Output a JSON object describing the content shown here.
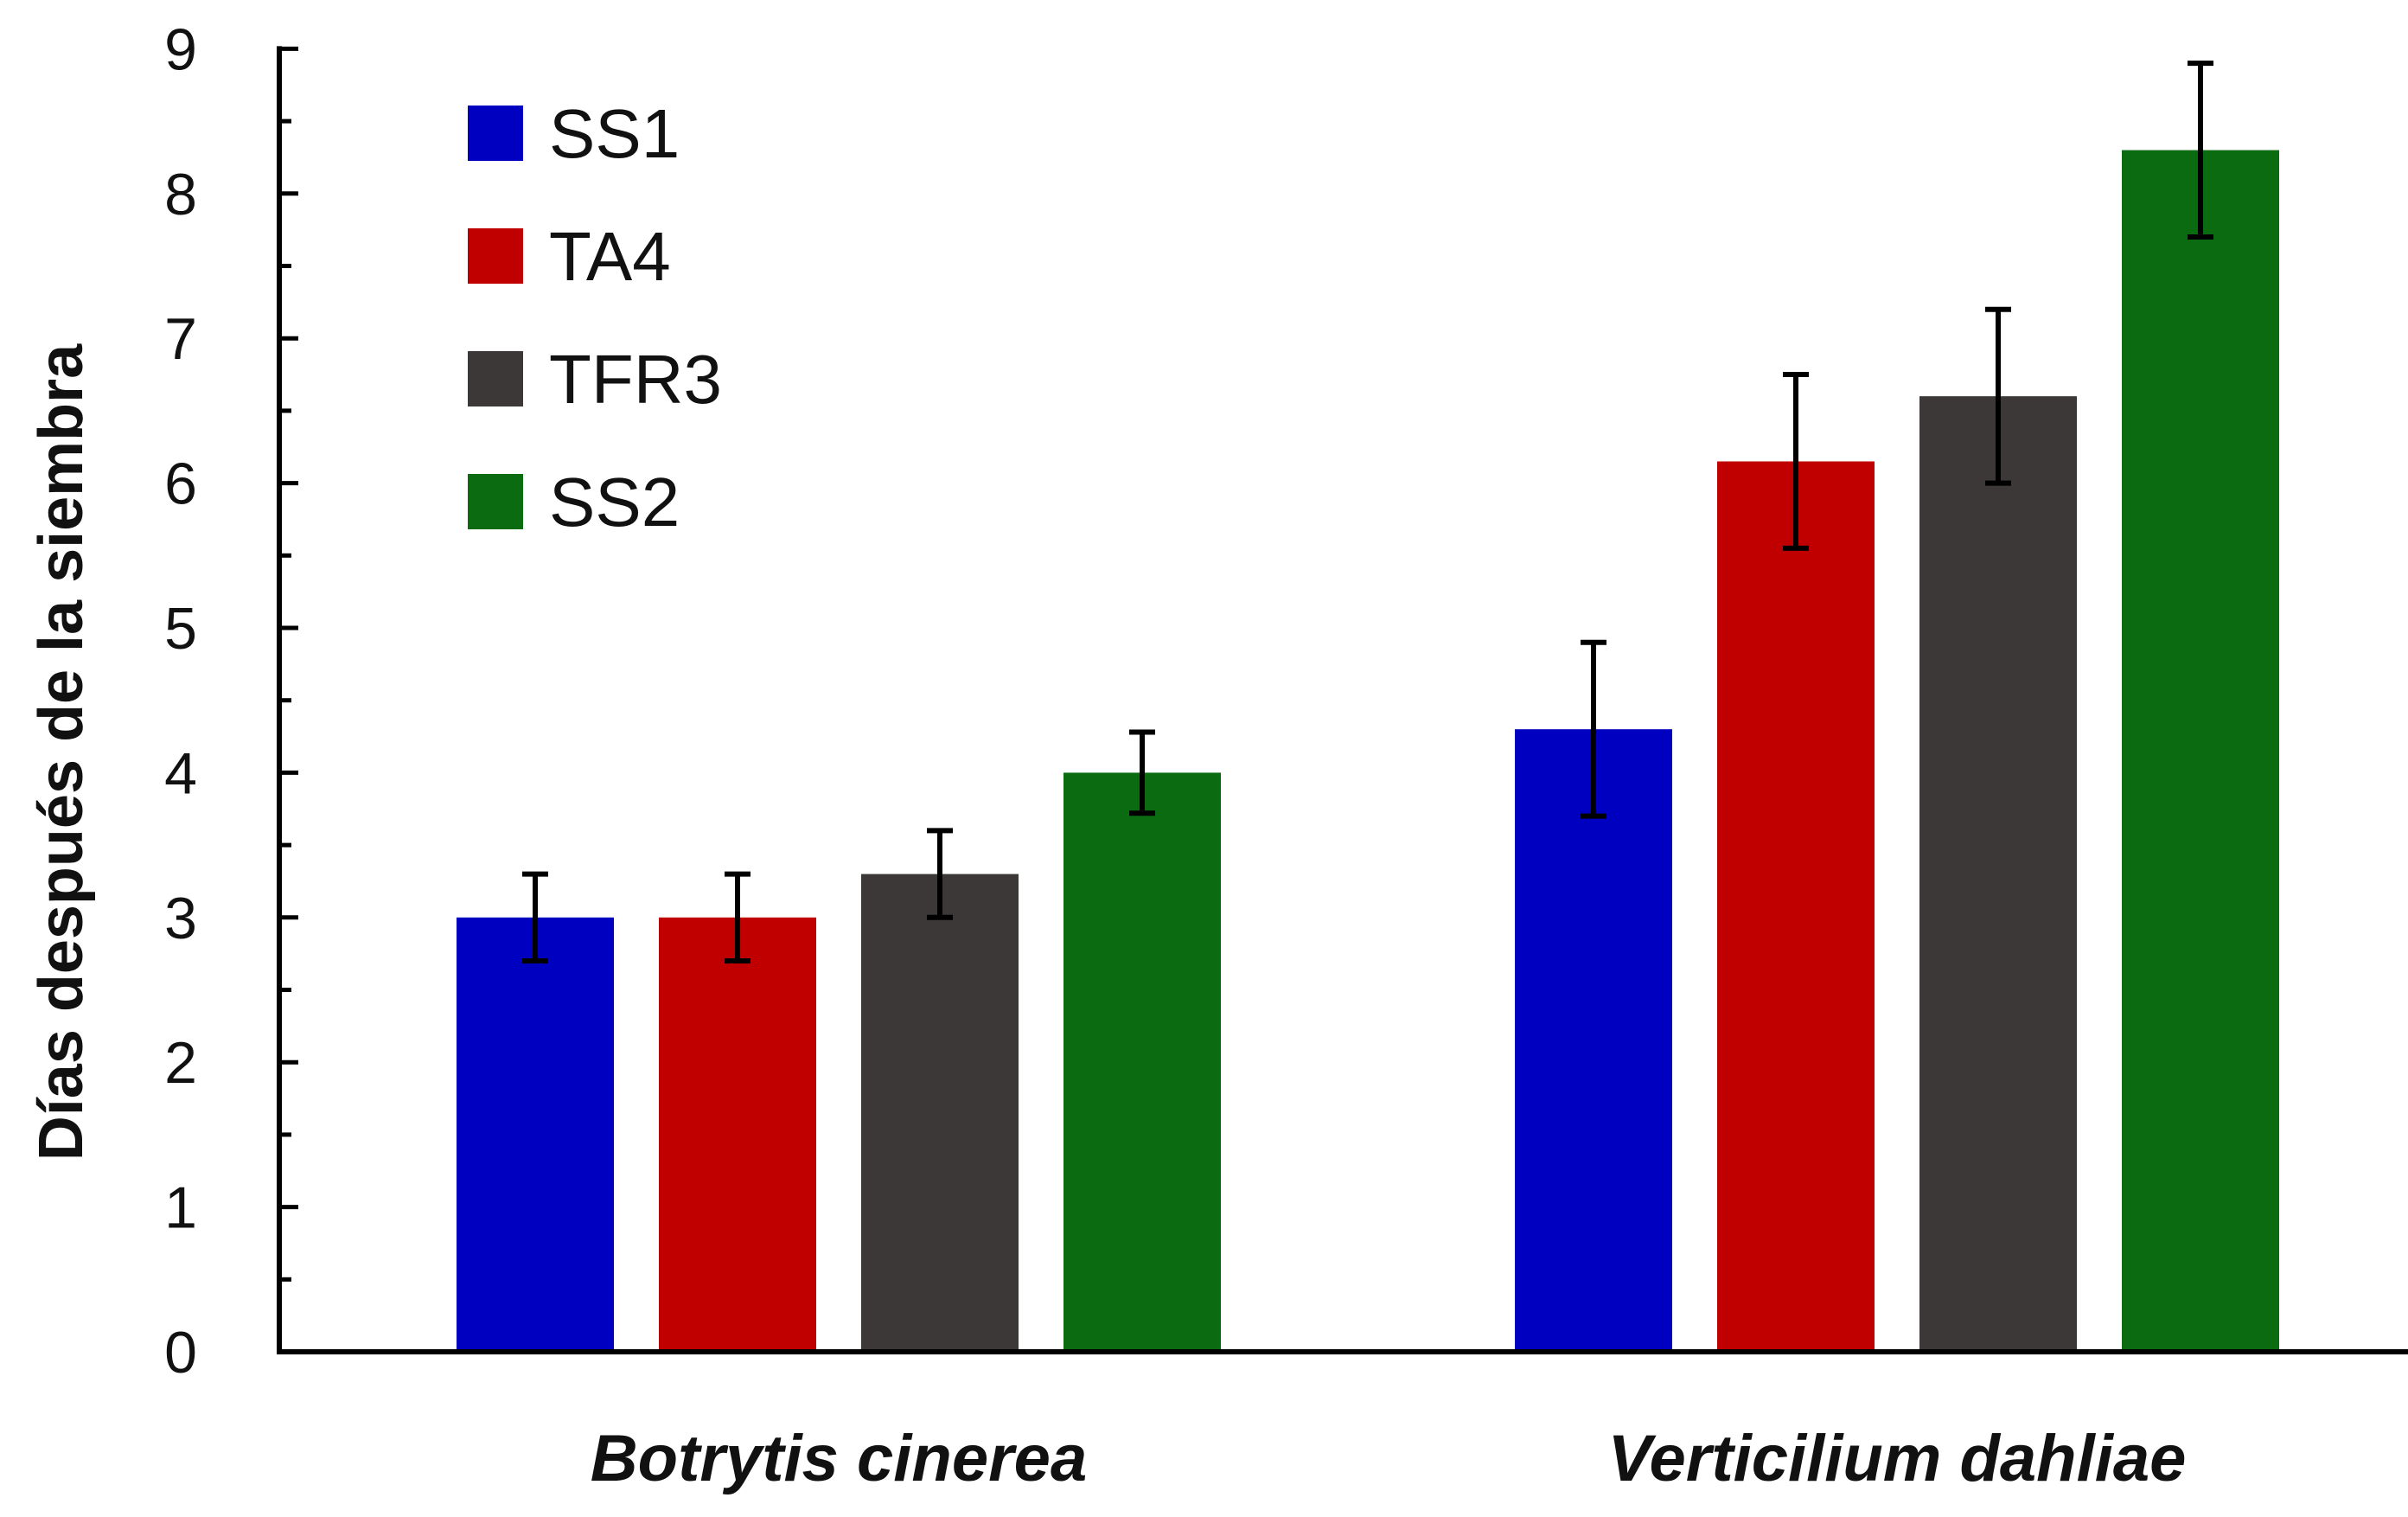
{
  "chart_data": {
    "type": "bar",
    "title": "",
    "xlabel": "",
    "ylabel": "Días después de la siembra",
    "ylim": [
      0,
      9
    ],
    "yticks": [
      0,
      1,
      2,
      3,
      4,
      5,
      6,
      7,
      8,
      9
    ],
    "grid": false,
    "legend_position": "top-left",
    "categories": [
      "Botrytis cinerea",
      "Verticilium dahliae"
    ],
    "series": [
      {
        "name": "SS1",
        "color": "#0000c0",
        "values": [
          3.0,
          4.3
        ],
        "errors": [
          0.3,
          0.6
        ]
      },
      {
        "name": "TA4",
        "color": "#c00000",
        "values": [
          3.0,
          6.15
        ],
        "errors": [
          0.3,
          0.6
        ]
      },
      {
        "name": "TFR3",
        "color": "#3b3837",
        "values": [
          3.3,
          6.6
        ],
        "errors": [
          0.3,
          0.6
        ]
      },
      {
        "name": "SS2",
        "color": "#0a6b10",
        "values": [
          4.0,
          8.3
        ],
        "errors": [
          0.28,
          0.6
        ]
      }
    ]
  }
}
